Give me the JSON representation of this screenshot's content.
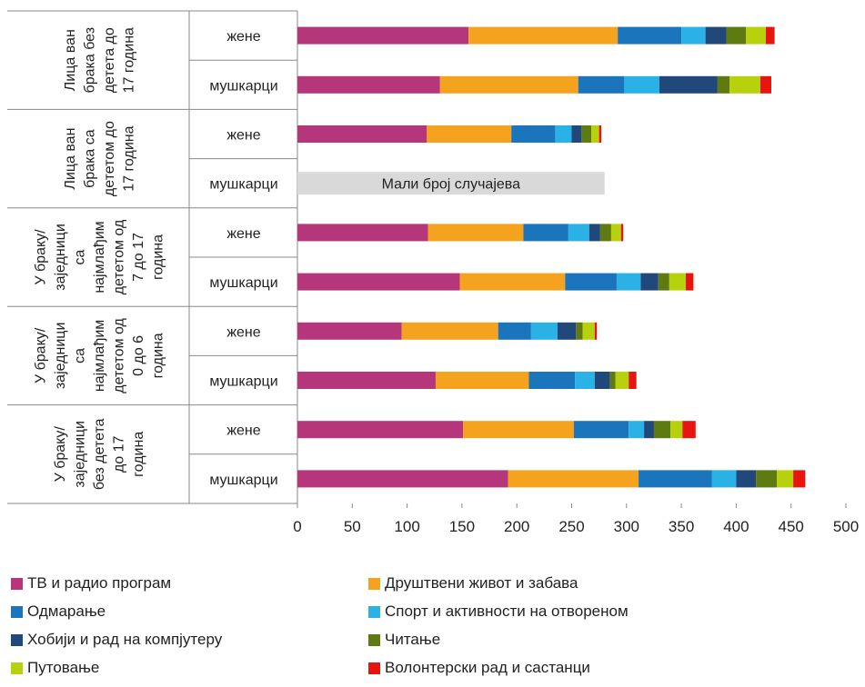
{
  "chart_data": {
    "type": "bar",
    "orientation": "horizontal",
    "stacked": true,
    "xlim": [
      0,
      500
    ],
    "xticks": [
      0,
      50,
      100,
      150,
      200,
      250,
      300,
      350,
      400,
      450,
      500
    ],
    "grid": false,
    "legend_position": "bottom",
    "groups": [
      {
        "label": "Лица ван брака без детета до 17 година",
        "rows": [
          0,
          1
        ]
      },
      {
        "label": "Лица ван брака са дететом до 17 година",
        "rows": [
          2,
          3
        ]
      },
      {
        "label": "У браку/ заједници са најмлађим дететом од 7 до 17 година",
        "rows": [
          4,
          5
        ]
      },
      {
        "label": "У браку/ заједници са најмлађим дететом од 0 до 6 година",
        "rows": [
          6,
          7
        ]
      },
      {
        "label": "У браку/ заједници без детета до 17 година",
        "rows": [
          8,
          9
        ]
      }
    ],
    "categories": [
      "жене",
      "мушкарци",
      "жене",
      "мушкарци",
      "жене",
      "мушкарци",
      "жене",
      "мушкарци",
      "жене",
      "мушкарци"
    ],
    "note": {
      "row": 3,
      "text": "Мали број случајева",
      "value": 280,
      "color": "#d9d9d9"
    },
    "series": [
      {
        "name": "ТВ и радио програм",
        "color": "#b5367b",
        "values": [
          156,
          130,
          118,
          null,
          119,
          148,
          95,
          126,
          151,
          192
        ]
      },
      {
        "name": "Друштвени живот и забава",
        "color": "#f5a31f",
        "values": [
          136,
          126,
          77,
          null,
          87,
          96,
          88,
          85,
          101,
          119
        ]
      },
      {
        "name": "Одмарање",
        "color": "#1a75bc",
        "values": [
          58,
          42,
          40,
          null,
          41,
          47,
          30,
          42,
          50,
          67
        ]
      },
      {
        "name": "Спорт и активности на отвореном",
        "color": "#2ab2e6",
        "values": [
          22,
          32,
          15,
          null,
          19,
          22,
          24,
          18,
          14,
          22
        ]
      },
      {
        "name": "Хобији и рад на компјутеру",
        "color": "#21487a",
        "values": [
          19,
          53,
          9,
          null,
          10,
          16,
          17,
          14,
          9,
          18
        ]
      },
      {
        "name": "Читање",
        "color": "#5e7a10",
        "values": [
          18,
          11,
          9,
          null,
          10,
          10,
          6,
          5,
          15,
          19
        ]
      },
      {
        "name": "Путовање",
        "color": "#b7d20c",
        "values": [
          18,
          28,
          7,
          null,
          9,
          15,
          11,
          12,
          11,
          15
        ]
      },
      {
        "name": "Волонтерски рад и састанци",
        "color": "#e8140f",
        "values": [
          8,
          10,
          2,
          null,
          2,
          7,
          2,
          7,
          12,
          11
        ]
      }
    ]
  }
}
